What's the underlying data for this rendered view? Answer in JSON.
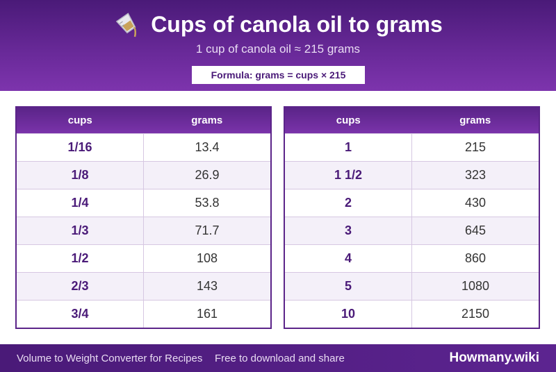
{
  "header": {
    "title": "Cups of canola oil to grams",
    "subtitle": "1 cup of canola oil ≈ 215 grams",
    "formula": "Formula: grams = cups × 215",
    "icon": "measuring-cup-pouring-icon"
  },
  "tables": {
    "left": {
      "columns": [
        "cups",
        "grams"
      ],
      "rows": [
        [
          "1/16",
          "13.4"
        ],
        [
          "1/8",
          "26.9"
        ],
        [
          "1/4",
          "53.8"
        ],
        [
          "1/3",
          "71.7"
        ],
        [
          "1/2",
          "108"
        ],
        [
          "2/3",
          "143"
        ],
        [
          "3/4",
          "161"
        ]
      ]
    },
    "right": {
      "columns": [
        "cups",
        "grams"
      ],
      "rows": [
        [
          "1",
          "215"
        ],
        [
          "1 1/2",
          "323"
        ],
        [
          "2",
          "430"
        ],
        [
          "3",
          "645"
        ],
        [
          "4",
          "860"
        ],
        [
          "5",
          "1080"
        ],
        [
          "10",
          "2150"
        ]
      ]
    }
  },
  "footer": {
    "left_text": "Volume to Weight Converter for Recipes",
    "mid_text": "Free to download and share",
    "brand": "Howmany.wiki"
  },
  "colors": {
    "brand_purple": "#5b2489",
    "header_text": "#ffffff",
    "cups_text": "#4a1a78"
  }
}
